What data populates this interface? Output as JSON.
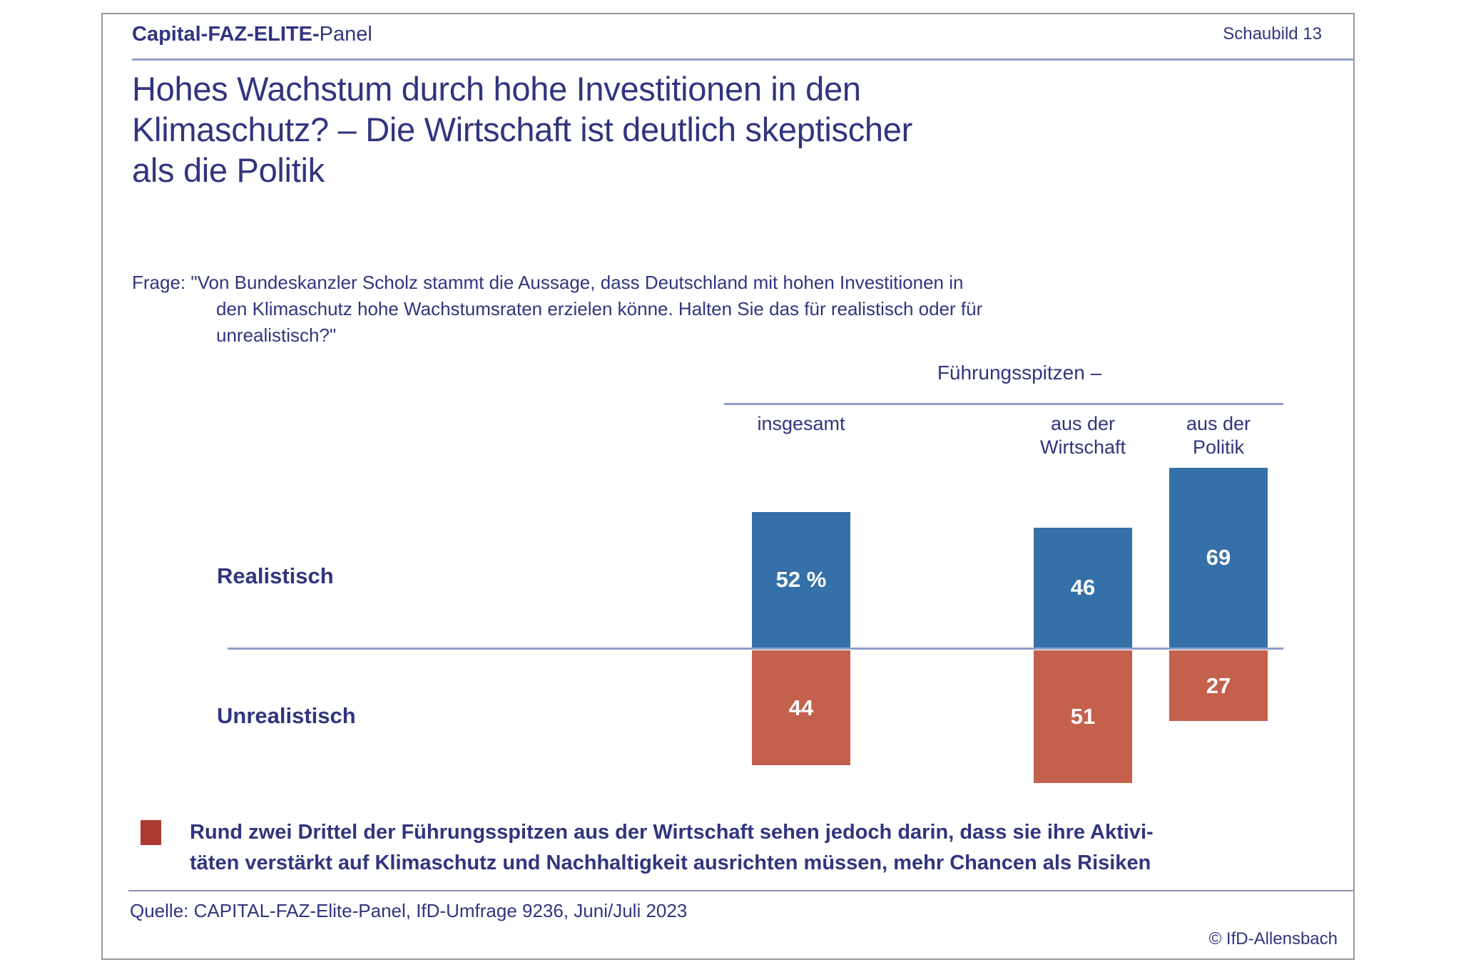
{
  "header": {
    "brand_bold": "Capital-FAZ-ELITE-",
    "brand_regular": "Panel",
    "slide_label": "Schaubild 13"
  },
  "title": {
    "lines": [
      "Hohes Wachstum durch hohe Investitionen in den",
      "Klimaschutz? – Die Wirtschaft ist deutlich skeptischer",
      "als die Politik"
    ]
  },
  "question": {
    "label": "Frage:",
    "lines": [
      "\"Von Bundeskanzler Scholz stammt die Aussage, dass Deutschland mit hohen Investitionen in",
      "den Klimaschutz hohe Wachstumsraten erzielen könne. Halten Sie das für realistisch oder für",
      "unrealistisch?\""
    ]
  },
  "chart_data": {
    "type": "bar",
    "orientation": "diverging-vertical",
    "title": "Hohes Wachstum durch hohe Investitionen in den Klimaschutz? – Die Wirtschaft ist deutlich skeptischer als die Politik",
    "group_header": "Führungsspitzen –",
    "categories": [
      "insgesamt",
      "aus der Wirtschaft",
      "aus der Politik"
    ],
    "categories_lines": [
      [
        "insgesamt"
      ],
      [
        "aus der",
        "Wirtschaft"
      ],
      [
        "aus der",
        "Politik"
      ]
    ],
    "unit": "%",
    "baseline": 0,
    "ylim": [
      -60,
      75
    ],
    "grid": false,
    "legend_position": "row-labels-left",
    "series": [
      {
        "name": "Realistisch",
        "direction": "up",
        "values": [
          52,
          46,
          69
        ],
        "labels": [
          "52 %",
          "46",
          "69"
        ],
        "color": "#3570a8"
      },
      {
        "name": "Unrealistisch",
        "direction": "down",
        "values": [
          44,
          51,
          27
        ],
        "labels": [
          "44",
          "51",
          "27"
        ],
        "color": "#c4614c"
      }
    ]
  },
  "note": {
    "bullet_color": "#ad3a31",
    "lines": [
      "Rund zwei Drittel der Führungsspitzen aus der Wirtschaft sehen jedoch darin, dass sie ihre Aktivi-",
      "täten verstärkt auf Klimaschutz und Nachhaltigkeit ausrichten müssen, mehr Chancen als Risiken"
    ]
  },
  "footer": {
    "source": "Quelle: CAPITAL-FAZ-Elite-Panel, IfD-Umfrage 9236, Juni/Juli 2023",
    "copyright": "© IfD-Allensbach"
  },
  "colors": {
    "text_navy": "#31357e",
    "bar_blue": "#3570a8",
    "bar_red": "#c4614c",
    "bullet_red": "#ad3a31",
    "rule_light": "#8ea0c8",
    "rule_footer": "#8b8fae",
    "border_gray": "#9a9a9a"
  }
}
